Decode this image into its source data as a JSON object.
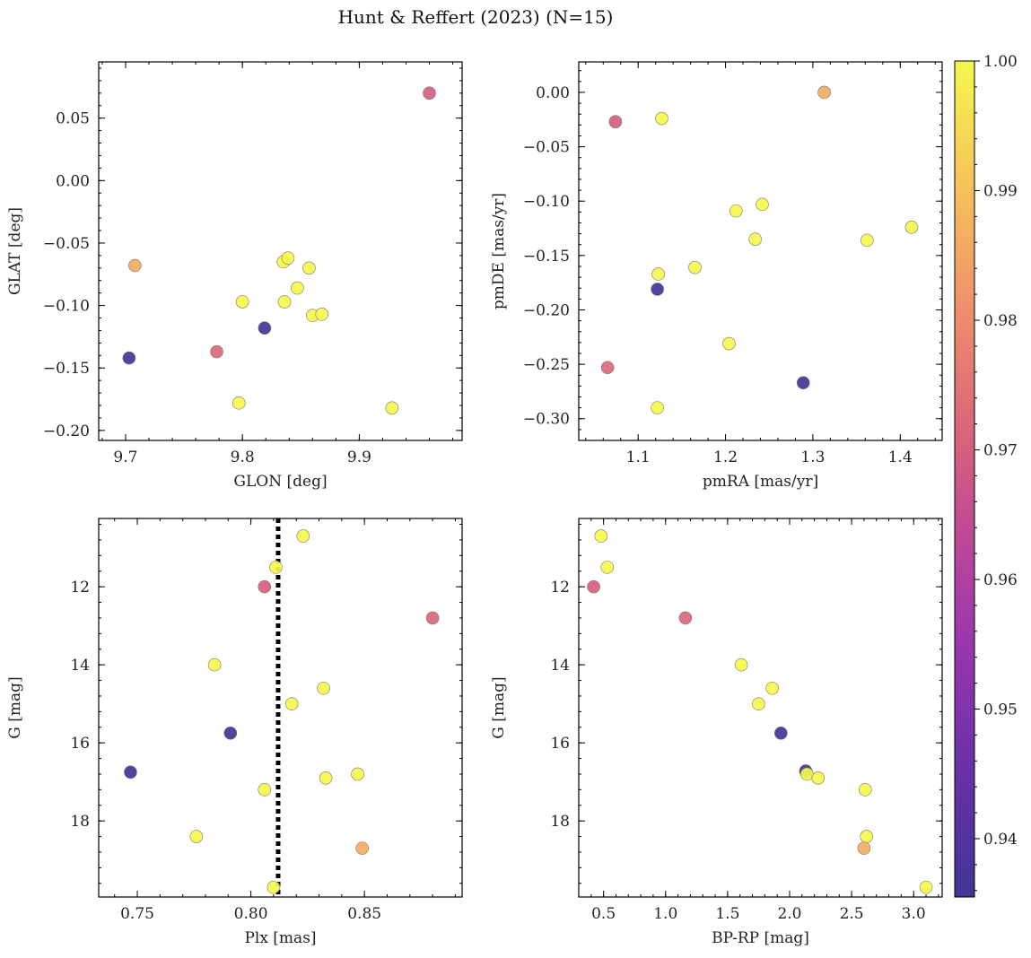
{
  "title": "Hunt & Reffert (2023) (N=15)",
  "colorbar": {
    "min": 0.9355,
    "max": 1.0,
    "ticks": [
      0.94,
      0.95,
      0.96,
      0.97,
      0.98,
      0.99,
      1.0
    ],
    "tick_labels": [
      "0.94",
      "0.95",
      "0.96",
      "0.97",
      "0.98",
      "0.99",
      "1.00"
    ],
    "colormap": "plasma"
  },
  "chart_data": [
    {
      "type": "scatter",
      "xlabel": "GLON [deg]",
      "ylabel": "GLAT [deg]",
      "xlim": [
        9.677,
        9.988
      ],
      "ylim": [
        -0.208,
        0.095
      ],
      "xticks": [
        9.7,
        9.8,
        9.9
      ],
      "xtick_labels": [
        "9.7",
        "9.8",
        "9.9"
      ],
      "yticks": [
        -0.2,
        -0.15,
        -0.1,
        -0.05,
        0.0,
        0.05
      ],
      "ytick_labels": [
        "−0.20",
        "−0.15",
        "−0.10",
        "−0.05",
        "0.00",
        "0.05"
      ],
      "points": [
        {
          "x": 9.96,
          "y": 0.07,
          "c": 0.97
        },
        {
          "x": 9.708,
          "y": -0.068,
          "c": 0.986
        },
        {
          "x": 9.703,
          "y": -0.142,
          "c": 0.936
        },
        {
          "x": 9.778,
          "y": -0.137,
          "c": 0.972
        },
        {
          "x": 9.819,
          "y": -0.118,
          "c": 0.937
        },
        {
          "x": 9.8,
          "y": -0.097,
          "c": 1.0
        },
        {
          "x": 9.836,
          "y": -0.097,
          "c": 1.0
        },
        {
          "x": 9.835,
          "y": -0.065,
          "c": 1.0
        },
        {
          "x": 9.839,
          "y": -0.062,
          "c": 1.0
        },
        {
          "x": 9.847,
          "y": -0.086,
          "c": 1.0
        },
        {
          "x": 9.857,
          "y": -0.07,
          "c": 1.0
        },
        {
          "x": 9.86,
          "y": -0.108,
          "c": 1.0
        },
        {
          "x": 9.868,
          "y": -0.107,
          "c": 1.0
        },
        {
          "x": 9.797,
          "y": -0.178,
          "c": 1.0
        },
        {
          "x": 9.928,
          "y": -0.182,
          "c": 1.0
        }
      ]
    },
    {
      "type": "scatter",
      "xlabel": "pmRA [mas/yr]",
      "ylabel": "pmDE [mas/yr]",
      "xlim": [
        1.032,
        1.448
      ],
      "ylim": [
        -0.32,
        0.028
      ],
      "xticks": [
        1.1,
        1.2,
        1.3,
        1.4
      ],
      "xtick_labels": [
        "1.1",
        "1.2",
        "1.3",
        "1.4"
      ],
      "yticks": [
        -0.3,
        -0.25,
        -0.2,
        -0.15,
        -0.1,
        -0.05,
        0.0
      ],
      "ytick_labels": [
        "−0.30",
        "−0.25",
        "−0.20",
        "−0.15",
        "−0.10",
        "−0.05",
        "0.00"
      ],
      "points": [
        {
          "x": 1.313,
          "y": 0.0,
          "c": 0.986
        },
        {
          "x": 1.074,
          "y": -0.027,
          "c": 0.97
        },
        {
          "x": 1.127,
          "y": -0.024,
          "c": 1.0
        },
        {
          "x": 1.212,
          "y": -0.109,
          "c": 1.0
        },
        {
          "x": 1.242,
          "y": -0.103,
          "c": 1.0
        },
        {
          "x": 1.234,
          "y": -0.135,
          "c": 1.0
        },
        {
          "x": 1.362,
          "y": -0.136,
          "c": 1.0
        },
        {
          "x": 1.413,
          "y": -0.124,
          "c": 1.0
        },
        {
          "x": 1.165,
          "y": -0.161,
          "c": 1.0
        },
        {
          "x": 1.123,
          "y": -0.167,
          "c": 1.0
        },
        {
          "x": 1.122,
          "y": -0.181,
          "c": 0.937
        },
        {
          "x": 1.204,
          "y": -0.231,
          "c": 1.0
        },
        {
          "x": 1.065,
          "y": -0.253,
          "c": 0.972
        },
        {
          "x": 1.289,
          "y": -0.267,
          "c": 0.936
        },
        {
          "x": 1.122,
          "y": -0.29,
          "c": 1.0
        }
      ]
    },
    {
      "type": "scatter",
      "xlabel": "Plx [mas]",
      "ylabel": "G [mag]",
      "xlim": [
        0.733,
        0.893
      ],
      "ylim": [
        19.95,
        10.25
      ],
      "xticks": [
        0.75,
        0.8,
        0.85
      ],
      "xtick_labels": [
        "0.75",
        "0.80",
        "0.85"
      ],
      "yticks": [
        12,
        14,
        16,
        18
      ],
      "ytick_labels": [
        "12",
        "14",
        "16",
        "18"
      ],
      "vline": 0.812,
      "points": [
        {
          "x": 0.823,
          "y": 10.7,
          "c": 1.0
        },
        {
          "x": 0.811,
          "y": 11.5,
          "c": 1.0
        },
        {
          "x": 0.806,
          "y": 12.0,
          "c": 0.97
        },
        {
          "x": 0.88,
          "y": 12.8,
          "c": 0.972
        },
        {
          "x": 0.784,
          "y": 14.0,
          "c": 1.0
        },
        {
          "x": 0.832,
          "y": 14.6,
          "c": 1.0
        },
        {
          "x": 0.818,
          "y": 15.0,
          "c": 1.0
        },
        {
          "x": 0.791,
          "y": 15.75,
          "c": 0.937
        },
        {
          "x": 0.747,
          "y": 16.75,
          "c": 0.936
        },
        {
          "x": 0.847,
          "y": 16.8,
          "c": 1.0
        },
        {
          "x": 0.833,
          "y": 16.9,
          "c": 1.0
        },
        {
          "x": 0.806,
          "y": 17.2,
          "c": 1.0
        },
        {
          "x": 0.776,
          "y": 18.4,
          "c": 1.0
        },
        {
          "x": 0.849,
          "y": 18.7,
          "c": 0.986
        },
        {
          "x": 0.81,
          "y": 19.7,
          "c": 1.0
        }
      ]
    },
    {
      "type": "scatter",
      "xlabel": "BP-RP [mag]",
      "ylabel": "G [mag]",
      "xlim": [
        0.3,
        3.23
      ],
      "ylim": [
        19.95,
        10.25
      ],
      "xticks": [
        0.5,
        1.0,
        1.5,
        2.0,
        2.5,
        3.0
      ],
      "xtick_labels": [
        "0.5",
        "1.0",
        "1.5",
        "2.0",
        "2.5",
        "3.0"
      ],
      "yticks": [
        12,
        14,
        16,
        18
      ],
      "ytick_labels": [
        "12",
        "14",
        "16",
        "18"
      ],
      "points": [
        {
          "x": 0.48,
          "y": 10.7,
          "c": 1.0
        },
        {
          "x": 0.53,
          "y": 11.5,
          "c": 1.0
        },
        {
          "x": 0.42,
          "y": 12.0,
          "c": 0.97
        },
        {
          "x": 1.16,
          "y": 12.8,
          "c": 0.972
        },
        {
          "x": 1.61,
          "y": 14.0,
          "c": 1.0
        },
        {
          "x": 1.86,
          "y": 14.6,
          "c": 1.0
        },
        {
          "x": 1.75,
          "y": 15.0,
          "c": 1.0
        },
        {
          "x": 1.93,
          "y": 15.75,
          "c": 0.937
        },
        {
          "x": 2.13,
          "y": 16.72,
          "c": 0.936
        },
        {
          "x": 2.14,
          "y": 16.8,
          "c": 1.0
        },
        {
          "x": 2.23,
          "y": 16.9,
          "c": 1.0
        },
        {
          "x": 2.61,
          "y": 17.2,
          "c": 1.0
        },
        {
          "x": 2.62,
          "y": 18.4,
          "c": 1.0
        },
        {
          "x": 2.6,
          "y": 18.7,
          "c": 0.986
        },
        {
          "x": 3.1,
          "y": 19.7,
          "c": 1.0
        }
      ]
    }
  ]
}
